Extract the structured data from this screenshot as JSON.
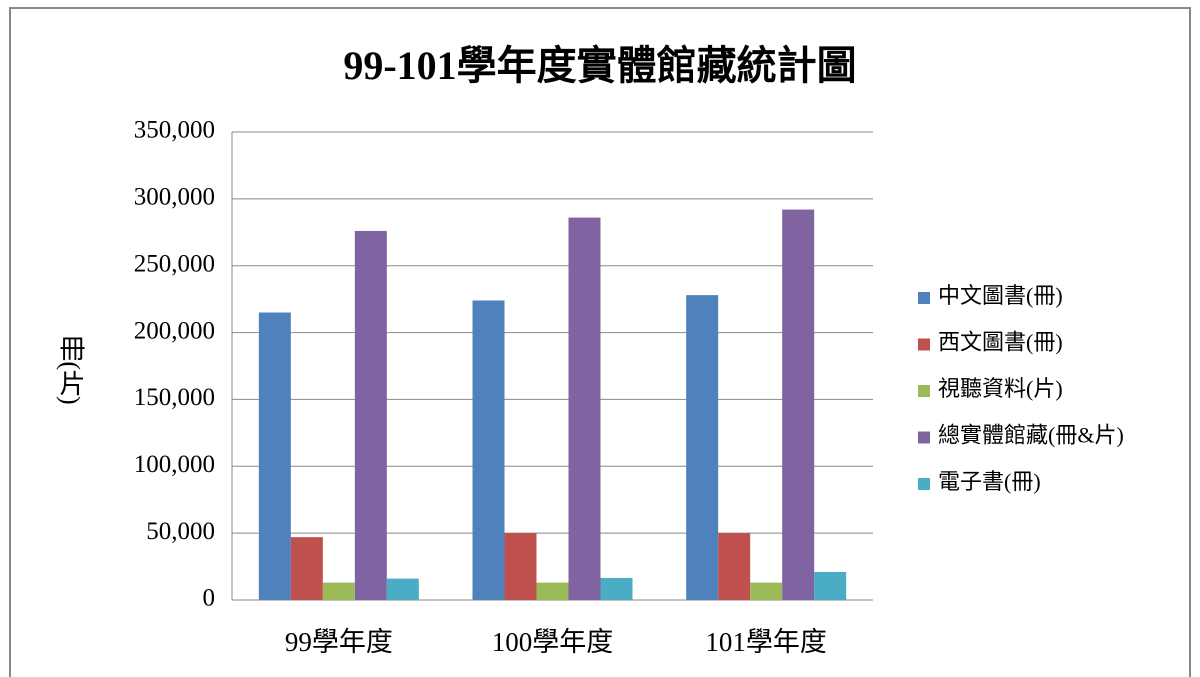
{
  "chart_data": {
    "type": "bar",
    "title": "99-101學年度實體館藏統計圖",
    "y_label": "冊(片)",
    "categories": [
      "99學年度",
      "100學年度",
      "101學年度"
    ],
    "series": [
      {
        "name": "中文圖書(冊)",
        "color": "#4f81bd",
        "values": [
          215000,
          224000,
          228000
        ]
      },
      {
        "name": "西文圖書(冊)",
        "color": "#c0504d",
        "values": [
          47000,
          50000,
          50000
        ]
      },
      {
        "name": "視聽資料(片)",
        "color": "#9bbb59",
        "values": [
          13000,
          13000,
          13000
        ]
      },
      {
        "name": "總實體館藏(冊&片)",
        "color": "#8064a2",
        "values": [
          276000,
          286000,
          292000
        ]
      },
      {
        "name": "電子書(冊)",
        "color": "#4bacc6",
        "values": [
          16000,
          16500,
          21000
        ]
      }
    ],
    "ylim": [
      0,
      350000
    ],
    "yticks": [
      0,
      {
        "value": 50000,
        "label": "50,000"
      },
      {
        "value": 100000,
        "label": "100,000"
      },
      {
        "value": 150000,
        "label": "150,000"
      },
      {
        "value": 200000,
        "label": "200,000"
      },
      {
        "value": 250000,
        "label": "250,000"
      },
      {
        "value": 300000,
        "label": "300,000"
      },
      {
        "value": 350000,
        "label": "350,000"
      }
    ],
    "grid": true,
    "legend": "right"
  }
}
